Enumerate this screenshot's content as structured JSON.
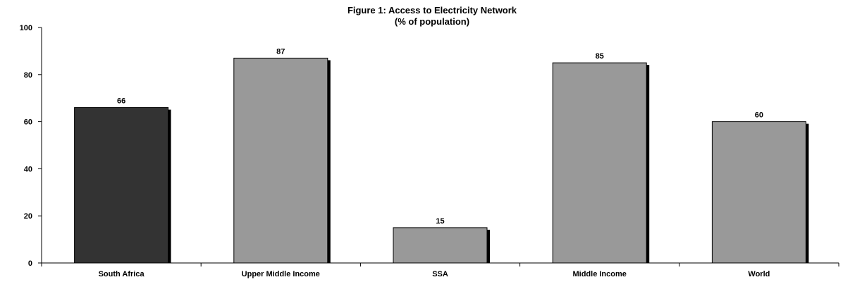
{
  "chart_data": {
    "type": "bar",
    "title": "Figure 1: Access to Electricity Network",
    "subtitle": "(% of population)",
    "xlabel": "",
    "ylabel": "",
    "categories": [
      "South Africa",
      "Upper Middle Income",
      "SSA",
      "Middle Income",
      "World"
    ],
    "values": [
      66,
      87,
      15,
      85,
      60
    ],
    "data_labels": [
      "66",
      "87",
      "15",
      "85",
      "60"
    ],
    "ylim": [
      0,
      100
    ],
    "yticks": [
      0,
      20,
      40,
      60,
      80,
      100
    ],
    "ytick_labels": [
      "0",
      "20",
      "40",
      "60",
      "80",
      "100"
    ],
    "grid": false,
    "legend": "none",
    "bar_colors": [
      "#333333",
      "#999999",
      "#999999",
      "#999999",
      "#999999"
    ],
    "shadow_color": "#000000"
  }
}
